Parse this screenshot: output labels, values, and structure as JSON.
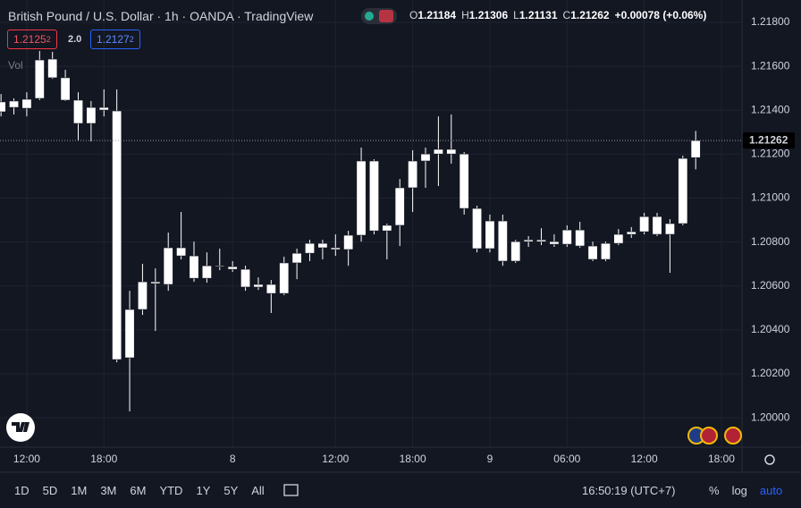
{
  "header": {
    "title": "British Pound / U.S. Dollar · 1h · OANDA · TradingView",
    "ohlc": [
      {
        "key": "O",
        "value": "1.21184"
      },
      {
        "key": "H",
        "value": "1.21306"
      },
      {
        "key": "L",
        "value": "1.21131"
      },
      {
        "key": "C",
        "value": "1.21262"
      }
    ],
    "change": "+0.00078 (+0.06%)"
  },
  "quote": {
    "bid": "1.2125",
    "bid_pip": "2",
    "spread": "2.0",
    "ask": "1.2127",
    "ask_pip": "2"
  },
  "volume_label": "Vol",
  "chart_data": {
    "type": "candlestick",
    "color": "#ffffff",
    "open": [
      1.21438,
      1.21413,
      1.21409,
      1.21454,
      1.21633,
      1.21548,
      1.21446,
      1.2134,
      1.21413,
      1.21397,
      1.20273,
      1.20493,
      1.20619,
      1.20607,
      1.20774,
      1.20737,
      1.20635,
      1.20692,
      1.20688,
      1.20676,
      1.20595,
      1.20607,
      1.20566,
      1.20705,
      1.20749,
      1.20794,
      1.20774,
      1.20766,
      1.20831,
      1.21169,
      1.20851,
      1.20876,
      1.21047,
      1.21169,
      1.21201,
      1.21222,
      1.21201,
      1.20953,
      1.2077,
      1.20896,
      1.20713,
      1.20802,
      1.2081,
      1.20802,
      1.2079,
      1.20855,
      1.20782,
      1.20721,
      1.20794,
      1.20835,
      1.20847,
      1.20916,
      1.20835,
      1.20884,
      1.21184
    ],
    "high": [
      1.21474,
      1.21454,
      1.21482,
      1.2167,
      1.21666,
      1.21584,
      1.21482,
      1.21442,
      1.21495,
      1.21495,
      1.20578,
      1.20701,
      1.2068,
      1.20843,
      1.20937,
      1.20802,
      1.20753,
      1.2077,
      1.20713,
      1.20692,
      1.20639,
      1.20627,
      1.20733,
      1.2077,
      1.2081,
      1.2081,
      1.20835,
      1.20851,
      1.2123,
      1.21177,
      1.20884,
      1.21087,
      1.21218,
      1.2123,
      1.21372,
      1.21381,
      1.2121,
      1.20965,
      1.20925,
      1.20925,
      1.2081,
      1.20827,
      1.20863,
      1.20835,
      1.20876,
      1.20892,
      1.20802,
      1.20802,
      1.20859,
      1.20868,
      1.20933,
      1.20933,
      1.20904,
      1.21193,
      1.21306
    ],
    "low": [
      1.21372,
      1.21381,
      1.21372,
      1.21446,
      1.21543,
      1.21442,
      1.21262,
      1.21258,
      1.21372,
      1.20253,
      1.20029,
      1.20468,
      1.20395,
      1.20578,
      1.20721,
      1.20619,
      1.20615,
      1.20672,
      1.20664,
      1.20578,
      1.20582,
      1.20477,
      1.20558,
      1.20631,
      1.20713,
      1.20721,
      1.20737,
      1.20692,
      1.20802,
      1.20835,
      1.20721,
      1.20782,
      1.20937,
      1.21047,
      1.21055,
      1.21157,
      1.20925,
      1.20753,
      1.20753,
      1.20692,
      1.20705,
      1.20778,
      1.20786,
      1.20778,
      1.20778,
      1.20774,
      1.20713,
      1.20713,
      1.20786,
      1.20819,
      1.20835,
      1.20827,
      1.2066,
      1.20876,
      1.21131
    ],
    "close": [
      1.21393,
      1.21442,
      1.2145,
      1.21629,
      1.21548,
      1.21446,
      1.2134,
      1.21413,
      1.21401,
      1.20265,
      1.20493,
      1.20619,
      1.20611,
      1.20774,
      1.20737,
      1.20635,
      1.20692,
      1.20688,
      1.20676,
      1.20595,
      1.20607,
      1.20566,
      1.20705,
      1.20749,
      1.20794,
      1.20774,
      1.20766,
      1.20831,
      1.21169,
      1.20851,
      1.20876,
      1.21047,
      1.21169,
      1.21201,
      1.21222,
      1.21201,
      1.20953,
      1.2077,
      1.20896,
      1.20713,
      1.20802,
      1.2081,
      1.20802,
      1.2079,
      1.20855,
      1.20782,
      1.20721,
      1.20794,
      1.20835,
      1.20847,
      1.20916,
      1.20835,
      1.20884,
      1.21181,
      1.21262
    ],
    "xlim": [
      -0.08,
      57.6
    ],
    "xticks": [
      {
        "value": 2,
        "label": "12:00"
      },
      {
        "value": 8,
        "label": "18:00"
      },
      {
        "value": 18,
        "label": "8"
      },
      {
        "value": 26,
        "label": "12:00"
      },
      {
        "value": 32,
        "label": "18:00"
      },
      {
        "value": 38,
        "label": "9"
      },
      {
        "value": 44,
        "label": "06:00"
      },
      {
        "value": 50,
        "label": "12:00"
      },
      {
        "value": 56,
        "label": "18:00"
      }
    ],
    "ylim": [
      1.19866,
      1.21902
    ],
    "yticks": [
      {
        "value": 1.2,
        "label": "1.20000"
      },
      {
        "value": 1.202,
        "label": "1.20200"
      },
      {
        "value": 1.204,
        "label": "1.20400"
      },
      {
        "value": 1.206,
        "label": "1.20600"
      },
      {
        "value": 1.208,
        "label": "1.20800"
      },
      {
        "value": 1.21,
        "label": "1.21000"
      },
      {
        "value": 1.212,
        "label": "1.21200"
      },
      {
        "value": 1.214,
        "label": "1.21400"
      },
      {
        "value": 1.216,
        "label": "1.21600"
      },
      {
        "value": 1.218,
        "label": "1.21800"
      }
    ],
    "grid": true,
    "last_price_label": "1.21262"
  },
  "toolbar": {
    "ranges": [
      "1D",
      "5D",
      "1M",
      "3M",
      "6M",
      "YTD",
      "1Y",
      "5Y",
      "All"
    ],
    "clock": "16:50:19 (UTC+7)",
    "options": [
      "%",
      "log",
      "auto"
    ]
  }
}
